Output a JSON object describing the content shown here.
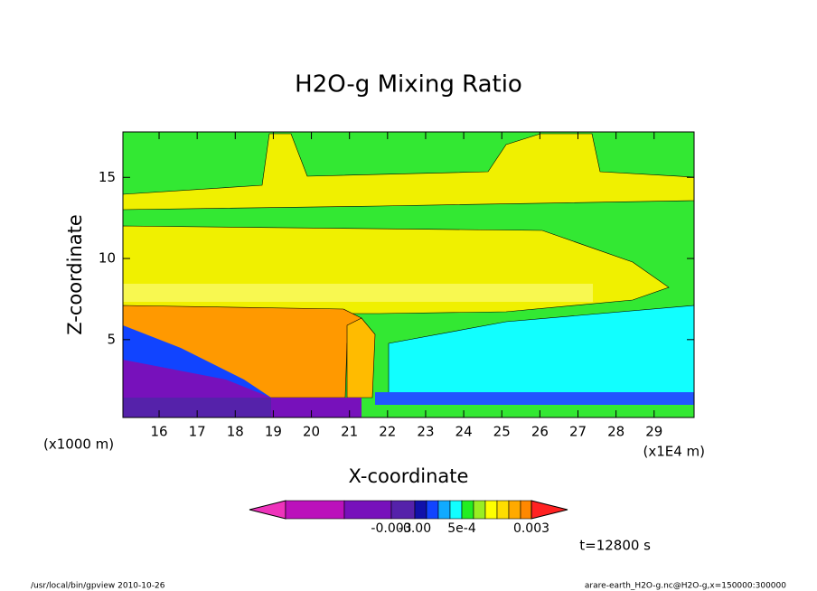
{
  "chart_data": {
    "type": "contour",
    "title": "H2O-g Mixing Ratio",
    "x_label": "X-coordinate",
    "y_label": "Z-coordinate",
    "x_unit": "(x1E4 m)",
    "y_unit": "(x1000 m)",
    "xlim": [
      15.05,
      30.05
    ],
    "xticks": [
      16,
      17,
      18,
      19,
      20,
      21,
      22,
      23,
      24,
      25,
      26,
      27,
      28,
      29
    ],
    "ylim": [
      0.2,
      17.8
    ],
    "yticks": [
      5,
      10,
      15
    ],
    "colorbar": {
      "colors": [
        "#ee33bb",
        "#bb11bb",
        "#7711bb",
        "#5522aa",
        "#1111aa",
        "#1144ff",
        "#11aaff",
        "#11ffff",
        "#22ee22",
        "#99ee22",
        "#ffff00",
        "#ffdd00",
        "#ffaa00",
        "#ff8800",
        "#ff2222"
      ],
      "ticks": [
        {
          "value": -0.003,
          "label": "-0.003"
        },
        {
          "value": -0.0005,
          "label": "-0.00"
        },
        {
          "value": 0.0005,
          "label": "5e-4"
        },
        {
          "value": 0.003,
          "label": "0.003"
        }
      ]
    },
    "time_label": "t=12800 s",
    "footer_left": "/usr/local/bin/gpview  2010-10-26",
    "footer_right": "arare-earth_H2O-g.nc@H2O-g,x=150000:300000"
  }
}
